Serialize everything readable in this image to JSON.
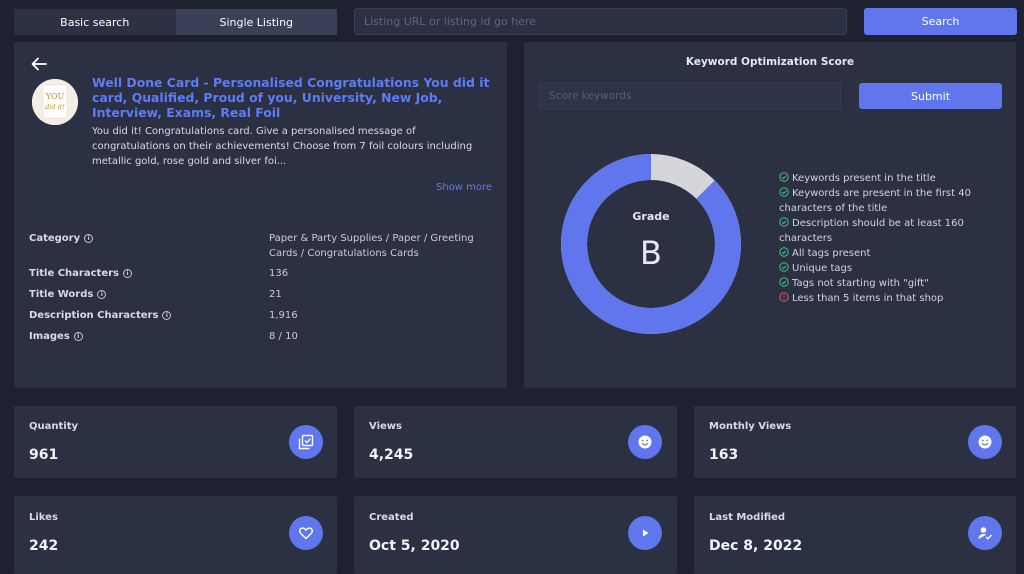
{
  "search": {
    "tabs": [
      "Basic search",
      "Single Listing"
    ],
    "active_tab": "Single Listing",
    "url_placeholder": "Listing URL or listing id go here",
    "button_label": "Search"
  },
  "listing": {
    "title": "Well Done Card - Personalised Congratulations You did it card, Qualified, Proud of you, University, New Job, Interview, Exams, Real Foil",
    "description": "You did it! Congratulations card. Give a personalised message of congratulations on their achievements! Choose from 7 foil colours including metallic gold, rose gold and silver foi...",
    "show_more": "Show more",
    "thumbnail_text": "YOU did it!",
    "meta": [
      {
        "label": "Category",
        "value": "Paper & Party Supplies / Paper / Greeting Cards / Congratulations Cards"
      },
      {
        "label": "Title Characters",
        "value": "136"
      },
      {
        "label": "Title Words",
        "value": "21"
      },
      {
        "label": "Description Characters",
        "value": "1,916"
      },
      {
        "label": "Images",
        "value": "8 / 10"
      }
    ]
  },
  "keyword": {
    "title": "Keyword Optimization Score",
    "input_placeholder": "Score keywords",
    "submit_label": "Submit",
    "grade_label": "Grade",
    "grade": "B",
    "score_fraction": 0.875,
    "colors": {
      "score": "#5f76ec",
      "remainder": "#d5d6da",
      "pass": "#3ec47a",
      "fail": "#e05454"
    },
    "checks": [
      {
        "text": "Keywords present in the title",
        "pass": true
      },
      {
        "text": "Keywords are present in the first 40 characters of the title",
        "pass": true
      },
      {
        "text": "Description should be at least 160 characters",
        "pass": true
      },
      {
        "text": "All tags present",
        "pass": true
      },
      {
        "text": "Unique tags",
        "pass": true
      },
      {
        "text": "Tags not starting with \"gift\"",
        "pass": true
      },
      {
        "text": "Less than 5 items in that shop",
        "pass": false
      }
    ]
  },
  "stats": [
    {
      "label": "Quantity",
      "value": "961",
      "icon": "library-check-icon"
    },
    {
      "label": "Views",
      "value": "4,245",
      "icon": "smiley-icon"
    },
    {
      "label": "Monthly Views",
      "value": "163",
      "icon": "smiley-icon"
    },
    {
      "label": "Likes",
      "value": "242",
      "icon": "heart-icon"
    },
    {
      "label": "Created",
      "value": "Oct 5, 2020",
      "icon": "play-icon"
    },
    {
      "label": "Last Modified",
      "value": "Dec 8, 2022",
      "icon": "user-check-icon"
    }
  ],
  "theme": {
    "accent": "#5f76ec",
    "link": "#5d7cf5",
    "background": "#1d2130",
    "panel": "#2b3043"
  }
}
